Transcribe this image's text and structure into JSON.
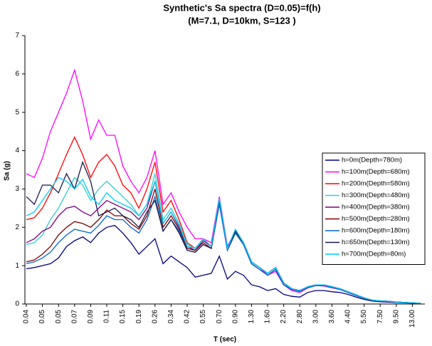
{
  "chart_data": {
    "type": "line",
    "title": "Synthetic's Sa spectra (D=0.05)=f(h)",
    "subtitle": "(M=7.1, D=10km, S=123 )",
    "x_label": "T (sec)",
    "y_label": "Sa (g)",
    "ylim": [
      0,
      7
    ],
    "yticks": [
      0,
      1,
      2,
      3,
      4,
      5,
      6,
      7
    ],
    "grid": false,
    "legend": "right",
    "categories": [
      "0.04",
      null,
      "0.05",
      null,
      "0.05",
      null,
      "0.07",
      null,
      "0.09",
      null,
      "0.11",
      null,
      "0.15",
      null,
      "0.19",
      null,
      "0.26",
      null,
      "0.34",
      null,
      "0.42",
      null,
      "0.55",
      null,
      "0.70",
      null,
      "0.90",
      null,
      "1.30",
      null,
      "1.60",
      null,
      "2.20",
      null,
      "2.80",
      null,
      "3.00",
      null,
      "3.60",
      null,
      "4.40",
      null,
      "5.50",
      null,
      "7.50",
      null,
      "9.50",
      null,
      "13.00",
      null
    ],
    "series": [
      {
        "name": "h=0m(Depth=780m)",
        "color": "#000080",
        "values": [
          0.92,
          0.95,
          1.0,
          1.05,
          1.2,
          1.5,
          1.65,
          1.75,
          1.6,
          1.85,
          2.0,
          2.05,
          1.85,
          1.6,
          1.3,
          1.5,
          1.7,
          1.05,
          1.25,
          1.1,
          0.95,
          0.7,
          0.75,
          0.8,
          1.25,
          0.65,
          0.85,
          0.75,
          0.5,
          0.45,
          0.35,
          0.4,
          0.25,
          0.2,
          0.18,
          0.3,
          0.35,
          0.35,
          0.32,
          0.3,
          0.25,
          0.18,
          0.12,
          0.08,
          0.06,
          0.05,
          0.04,
          0.03,
          0.02,
          0.01
        ]
      },
      {
        "name": "h=100m(Depth=680m)",
        "color": "#ff00ff",
        "values": [
          3.4,
          3.3,
          3.8,
          4.5,
          5.0,
          5.5,
          6.1,
          5.3,
          4.3,
          4.8,
          4.4,
          4.4,
          3.6,
          3.2,
          2.9,
          3.3,
          4.0,
          2.6,
          2.9,
          2.4,
          2.0,
          1.7,
          1.7,
          1.6,
          2.8,
          1.5,
          1.9,
          1.6,
          1.1,
          0.95,
          0.75,
          0.85,
          0.5,
          0.35,
          0.3,
          0.42,
          0.48,
          0.47,
          0.42,
          0.38,
          0.3,
          0.22,
          0.15,
          0.1,
          0.08,
          0.07,
          0.05,
          0.04,
          0.03,
          0.02
        ]
      },
      {
        "name": "h=200m(Depth=580m)",
        "color": "#ff0000",
        "values": [
          2.2,
          2.25,
          2.5,
          2.9,
          3.4,
          3.9,
          4.35,
          3.9,
          3.3,
          3.7,
          3.9,
          3.6,
          3.1,
          2.9,
          2.5,
          3.0,
          3.7,
          2.4,
          2.7,
          2.2,
          1.6,
          1.45,
          1.7,
          1.5,
          2.75,
          1.45,
          1.9,
          1.6,
          1.1,
          0.95,
          0.8,
          0.95,
          0.55,
          0.4,
          0.35,
          0.45,
          0.5,
          0.5,
          0.45,
          0.4,
          0.32,
          0.24,
          0.16,
          0.1,
          0.08,
          0.07,
          0.05,
          0.04,
          0.03,
          0.02
        ]
      },
      {
        "name": "h=300m(Depth=480m)",
        "color": "#33cccc",
        "values": [
          1.55,
          1.6,
          1.8,
          2.2,
          2.5,
          2.9,
          3.3,
          3.1,
          2.7,
          3.0,
          3.2,
          3.0,
          2.8,
          2.6,
          2.3,
          2.6,
          3.4,
          2.2,
          2.5,
          2.1,
          1.55,
          1.45,
          1.7,
          1.5,
          2.75,
          1.45,
          1.9,
          1.6,
          1.1,
          0.95,
          0.8,
          0.95,
          0.55,
          0.4,
          0.35,
          0.45,
          0.5,
          0.5,
          0.45,
          0.4,
          0.32,
          0.24,
          0.16,
          0.1,
          0.08,
          0.07,
          0.05,
          0.04,
          0.03,
          0.02
        ]
      },
      {
        "name": "h=400m(Depth=380m)",
        "color": "#800080",
        "values": [
          1.6,
          1.7,
          1.9,
          2.0,
          2.3,
          2.5,
          2.55,
          2.4,
          2.3,
          2.5,
          2.7,
          2.6,
          2.5,
          2.4,
          2.2,
          2.5,
          3.2,
          2.1,
          2.4,
          2.0,
          1.5,
          1.4,
          1.65,
          1.5,
          2.7,
          1.45,
          1.9,
          1.6,
          1.1,
          0.95,
          0.8,
          0.95,
          0.55,
          0.4,
          0.35,
          0.45,
          0.5,
          0.5,
          0.45,
          0.4,
          0.32,
          0.24,
          0.16,
          0.1,
          0.08,
          0.07,
          0.05,
          0.04,
          0.03,
          0.02
        ]
      },
      {
        "name": "h=500m(Depth=280m)",
        "color": "#800000",
        "values": [
          1.1,
          1.15,
          1.3,
          1.5,
          1.8,
          2.0,
          2.15,
          2.1,
          2.0,
          2.2,
          2.45,
          2.3,
          2.3,
          2.1,
          1.95,
          2.3,
          3.0,
          2.0,
          2.3,
          1.95,
          1.45,
          1.4,
          1.6,
          1.45,
          2.65,
          1.4,
          1.85,
          1.55,
          1.05,
          0.9,
          0.75,
          0.9,
          0.5,
          0.38,
          0.33,
          0.43,
          0.48,
          0.48,
          0.43,
          0.38,
          0.3,
          0.22,
          0.15,
          0.1,
          0.08,
          0.07,
          0.05,
          0.04,
          0.03,
          0.02
        ]
      },
      {
        "name": "h=600m(Depth=180m)",
        "color": "#0066cc",
        "values": [
          1.05,
          1.1,
          1.2,
          1.35,
          1.6,
          1.8,
          1.95,
          1.9,
          1.85,
          2.05,
          2.3,
          2.2,
          2.2,
          2.0,
          1.85,
          2.2,
          2.8,
          1.9,
          2.2,
          1.9,
          1.4,
          1.35,
          1.55,
          1.45,
          2.6,
          1.4,
          1.85,
          1.55,
          1.05,
          0.9,
          0.75,
          0.9,
          0.5,
          0.38,
          0.33,
          0.43,
          0.48,
          0.48,
          0.43,
          0.38,
          0.3,
          0.22,
          0.15,
          0.1,
          0.08,
          0.07,
          0.05,
          0.04,
          0.03,
          0.02
        ]
      },
      {
        "name": "h=650m(Depth=130m)",
        "color": "#1a1a4d",
        "values": [
          2.8,
          2.6,
          3.1,
          3.1,
          2.9,
          3.4,
          3.0,
          3.7,
          3.2,
          2.3,
          2.4,
          2.5,
          2.3,
          2.2,
          2.0,
          2.4,
          2.7,
          1.9,
          2.2,
          1.85,
          1.4,
          1.35,
          1.55,
          1.45,
          2.7,
          1.45,
          1.9,
          1.6,
          1.1,
          0.95,
          0.8,
          0.95,
          0.55,
          0.4,
          0.35,
          0.45,
          0.5,
          0.5,
          0.45,
          0.4,
          0.32,
          0.24,
          0.16,
          0.1,
          0.08,
          0.07,
          0.05,
          0.04,
          0.03,
          0.02
        ]
      },
      {
        "name": "h=700m(Depth=80m)",
        "color": "#00ccff",
        "values": [
          2.3,
          2.4,
          2.7,
          3.0,
          3.3,
          3.2,
          3.0,
          3.25,
          2.8,
          2.6,
          2.9,
          2.7,
          2.6,
          2.5,
          2.3,
          2.6,
          3.2,
          2.1,
          2.4,
          2.05,
          1.5,
          1.45,
          1.7,
          1.5,
          2.75,
          1.45,
          1.95,
          1.6,
          1.1,
          0.95,
          0.8,
          0.95,
          0.55,
          0.4,
          0.35,
          0.45,
          0.5,
          0.5,
          0.45,
          0.4,
          0.32,
          0.24,
          0.16,
          0.1,
          0.08,
          0.07,
          0.05,
          0.04,
          0.03,
          0.02
        ]
      }
    ]
  }
}
